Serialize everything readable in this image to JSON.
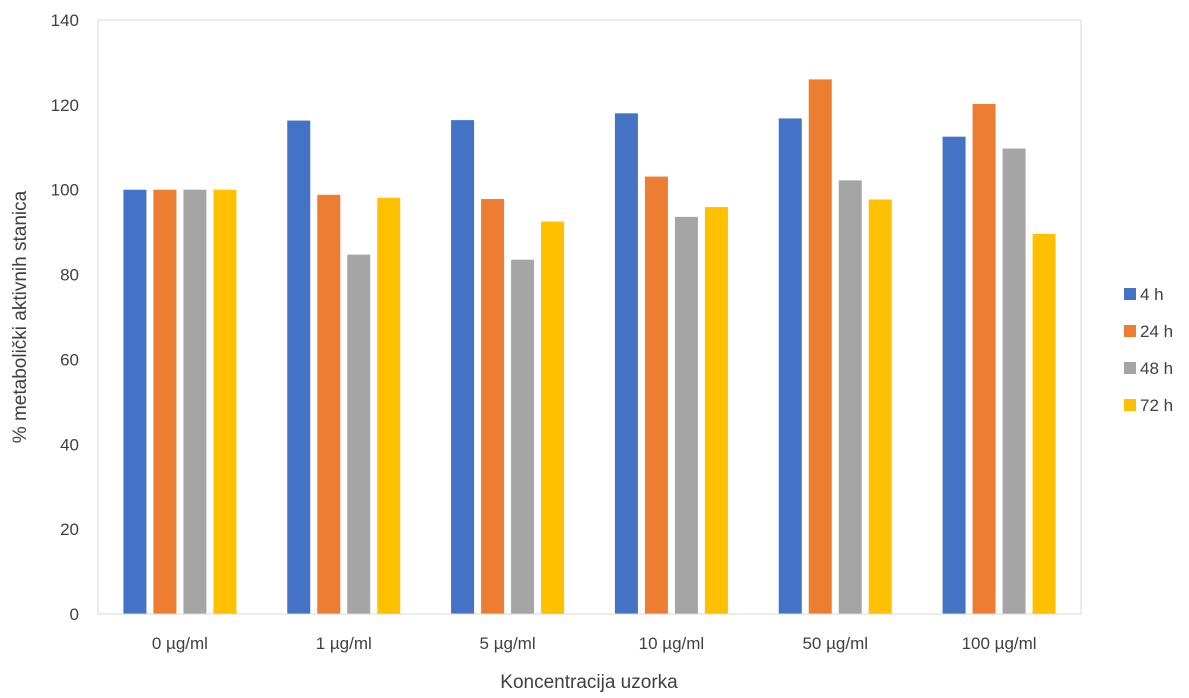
{
  "chart_data": {
    "type": "bar",
    "title": "",
    "xlabel": "Koncentracija uzorka",
    "ylabel": "% metabolički aktivnih stanica",
    "ylim": [
      0,
      140
    ],
    "yticks": [
      0,
      20,
      40,
      60,
      80,
      100,
      120,
      140
    ],
    "categories": [
      "0 µg/ml",
      "1 µg/ml",
      "5 µg/ml",
      "10 µg/ml",
      "50 µg/ml",
      "100 µg/ml"
    ],
    "series": [
      {
        "name": "4 h",
        "color": "#4472C4",
        "values": [
          100,
          116.3,
          116.4,
          118,
          116.8,
          112.5
        ]
      },
      {
        "name": "24 h",
        "color": "#ED7D31",
        "values": [
          100,
          98.8,
          97.8,
          103.1,
          126,
          120.2
        ]
      },
      {
        "name": "48 h",
        "color": "#A5A5A5",
        "values": [
          100,
          84.7,
          83.5,
          93.6,
          102.2,
          109.7
        ]
      },
      {
        "name": "72 h",
        "color": "#FFC000",
        "values": [
          100,
          98.1,
          92.5,
          95.9,
          97.7,
          89.6
        ]
      }
    ],
    "grid": false,
    "legend_position": "right"
  }
}
